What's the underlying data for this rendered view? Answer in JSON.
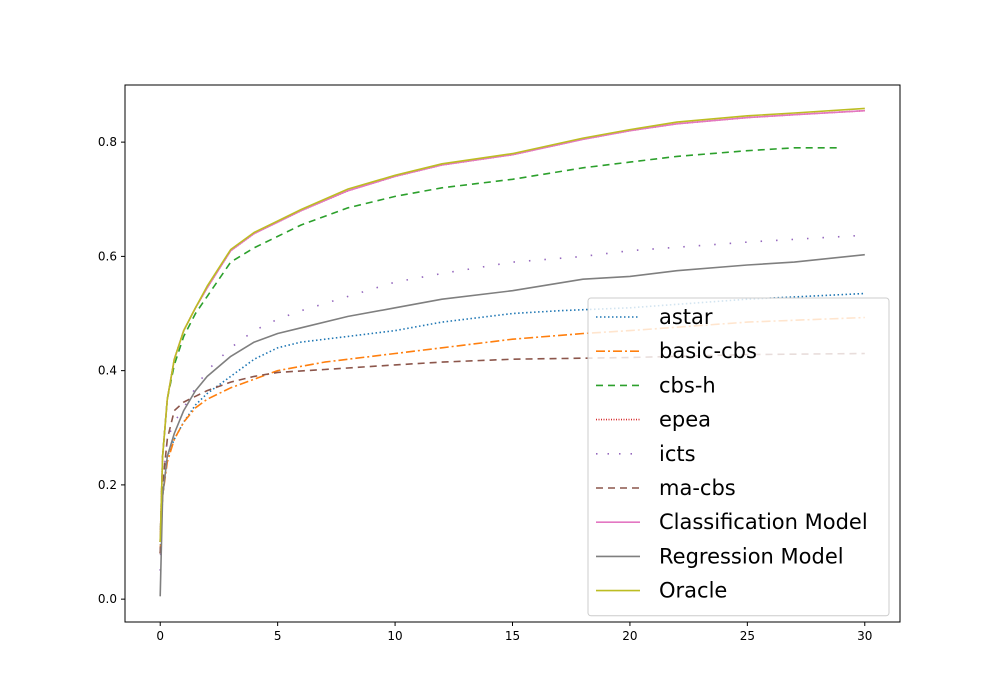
{
  "chart_data": {
    "type": "line",
    "title": "",
    "xlabel": "",
    "ylabel": "",
    "xlim": [
      -1.5,
      31.5
    ],
    "ylim": [
      -0.04,
      0.9
    ],
    "xticks": [
      0,
      5,
      10,
      15,
      20,
      25,
      30
    ],
    "xtick_labels": [
      "0",
      "5",
      "10",
      "15",
      "20",
      "25",
      "30"
    ],
    "yticks": [
      0.0,
      0.2,
      0.4,
      0.6,
      0.8
    ],
    "ytick_labels": [
      "0.0",
      "0.2",
      "0.4",
      "0.6",
      "0.8"
    ],
    "grid": false,
    "legend_position": "lower-right",
    "series": [
      {
        "name": "astar",
        "color": "#1f77b4",
        "style": "dotted",
        "points": [
          [
            0,
            0.08
          ],
          [
            0.1,
            0.18
          ],
          [
            0.3,
            0.25
          ],
          [
            0.6,
            0.28
          ],
          [
            1,
            0.31
          ],
          [
            1.5,
            0.34
          ],
          [
            2,
            0.36
          ],
          [
            3,
            0.39
          ],
          [
            4,
            0.42
          ],
          [
            5,
            0.44
          ],
          [
            6,
            0.45
          ],
          [
            8,
            0.46
          ],
          [
            10,
            0.47
          ],
          [
            12,
            0.485
          ],
          [
            15,
            0.5
          ],
          [
            17,
            0.505
          ],
          [
            20,
            0.51
          ],
          [
            25,
            0.525
          ],
          [
            30,
            0.535
          ]
        ]
      },
      {
        "name": "basic-cbs",
        "color": "#ff7f0e",
        "style": "dashdot",
        "points": [
          [
            0,
            0.08
          ],
          [
            0.1,
            0.18
          ],
          [
            0.3,
            0.24
          ],
          [
            0.6,
            0.28
          ],
          [
            1,
            0.31
          ],
          [
            1.5,
            0.335
          ],
          [
            2,
            0.35
          ],
          [
            3,
            0.37
          ],
          [
            4,
            0.385
          ],
          [
            5,
            0.4
          ],
          [
            7,
            0.415
          ],
          [
            10,
            0.43
          ],
          [
            12,
            0.44
          ],
          [
            15,
            0.455
          ],
          [
            18,
            0.465
          ],
          [
            20,
            0.47
          ],
          [
            25,
            0.485
          ],
          [
            30,
            0.493
          ]
        ]
      },
      {
        "name": "cbs-h",
        "color": "#2ca02c",
        "style": "dashed",
        "points": [
          [
            0,
            0.1
          ],
          [
            0.1,
            0.25
          ],
          [
            0.3,
            0.35
          ],
          [
            0.6,
            0.41
          ],
          [
            1,
            0.46
          ],
          [
            1.5,
            0.5
          ],
          [
            2,
            0.53
          ],
          [
            3,
            0.59
          ],
          [
            4,
            0.615
          ],
          [
            5,
            0.635
          ],
          [
            6,
            0.655
          ],
          [
            8,
            0.685
          ],
          [
            10,
            0.705
          ],
          [
            12,
            0.72
          ],
          [
            15,
            0.735
          ],
          [
            18,
            0.755
          ],
          [
            20,
            0.765
          ],
          [
            22,
            0.775
          ],
          [
            25,
            0.785
          ],
          [
            27,
            0.79
          ],
          [
            29,
            0.79
          ]
        ]
      },
      {
        "name": "epea",
        "color": "#d62728",
        "style": "densedot",
        "points": [
          [
            0,
            0.1
          ],
          [
            0.1,
            0.25
          ],
          [
            0.3,
            0.35
          ],
          [
            0.6,
            0.42
          ],
          [
            1,
            0.47
          ],
          [
            1.5,
            0.51
          ],
          [
            2,
            0.545
          ],
          [
            3,
            0.61
          ],
          [
            4,
            0.64
          ],
          [
            5,
            0.66
          ],
          [
            6,
            0.68
          ],
          [
            8,
            0.715
          ],
          [
            10,
            0.74
          ],
          [
            12,
            0.76
          ],
          [
            15,
            0.778
          ],
          [
            18,
            0.805
          ],
          [
            20,
            0.82
          ],
          [
            22,
            0.832
          ],
          [
            25,
            0.843
          ],
          [
            27,
            0.848
          ],
          [
            30,
            0.855
          ]
        ]
      },
      {
        "name": "icts",
        "color": "#9467bd",
        "style": "sparsedot",
        "points": [
          [
            0,
            0.05
          ],
          [
            0.1,
            0.2
          ],
          [
            0.3,
            0.28
          ],
          [
            0.6,
            0.31
          ],
          [
            1,
            0.335
          ],
          [
            1.5,
            0.37
          ],
          [
            2,
            0.4
          ],
          [
            3,
            0.44
          ],
          [
            4,
            0.47
          ],
          [
            5,
            0.49
          ],
          [
            6,
            0.505
          ],
          [
            8,
            0.53
          ],
          [
            10,
            0.555
          ],
          [
            12,
            0.57
          ],
          [
            15,
            0.59
          ],
          [
            18,
            0.6
          ],
          [
            20,
            0.61
          ],
          [
            25,
            0.625
          ],
          [
            30,
            0.637
          ]
        ]
      },
      {
        "name": "ma-cbs",
        "color": "#8c564b",
        "style": "dashed",
        "points": [
          [
            0,
            0.08
          ],
          [
            0.1,
            0.2
          ],
          [
            0.3,
            0.28
          ],
          [
            0.6,
            0.33
          ],
          [
            1,
            0.345
          ],
          [
            1.5,
            0.355
          ],
          [
            2,
            0.365
          ],
          [
            3,
            0.38
          ],
          [
            4,
            0.39
          ],
          [
            5,
            0.397
          ],
          [
            7,
            0.402
          ],
          [
            10,
            0.41
          ],
          [
            12,
            0.415
          ],
          [
            15,
            0.42
          ],
          [
            20,
            0.423
          ],
          [
            25,
            0.428
          ],
          [
            30,
            0.43
          ]
        ]
      },
      {
        "name": "Classification Model",
        "color": "#e377c2",
        "style": "solid",
        "points": [
          [
            0,
            0.1
          ],
          [
            0.1,
            0.25
          ],
          [
            0.3,
            0.35
          ],
          [
            0.6,
            0.42
          ],
          [
            1,
            0.47
          ],
          [
            1.5,
            0.51
          ],
          [
            2,
            0.545
          ],
          [
            3,
            0.61
          ],
          [
            4,
            0.64
          ],
          [
            5,
            0.66
          ],
          [
            6,
            0.68
          ],
          [
            8,
            0.715
          ],
          [
            10,
            0.74
          ],
          [
            12,
            0.76
          ],
          [
            15,
            0.778
          ],
          [
            18,
            0.805
          ],
          [
            20,
            0.82
          ],
          [
            22,
            0.832
          ],
          [
            25,
            0.843
          ],
          [
            27,
            0.848
          ],
          [
            30,
            0.855
          ]
        ]
      },
      {
        "name": "Regression Model",
        "color": "#7f7f7f",
        "style": "solid",
        "points": [
          [
            0,
            0.005
          ],
          [
            0.1,
            0.18
          ],
          [
            0.3,
            0.25
          ],
          [
            0.6,
            0.29
          ],
          [
            1,
            0.33
          ],
          [
            1.5,
            0.365
          ],
          [
            2,
            0.39
          ],
          [
            3,
            0.425
          ],
          [
            4,
            0.45
          ],
          [
            5,
            0.465
          ],
          [
            6,
            0.475
          ],
          [
            8,
            0.495
          ],
          [
            10,
            0.51
          ],
          [
            12,
            0.525
          ],
          [
            15,
            0.54
          ],
          [
            18,
            0.56
          ],
          [
            20,
            0.565
          ],
          [
            22,
            0.575
          ],
          [
            25,
            0.585
          ],
          [
            27,
            0.59
          ],
          [
            30,
            0.603
          ]
        ]
      },
      {
        "name": "Oracle",
        "color": "#bcbd22",
        "style": "solid",
        "points": [
          [
            0,
            0.1
          ],
          [
            0.1,
            0.25
          ],
          [
            0.3,
            0.35
          ],
          [
            0.6,
            0.42
          ],
          [
            1,
            0.47
          ],
          [
            1.5,
            0.51
          ],
          [
            2,
            0.548
          ],
          [
            3,
            0.612
          ],
          [
            4,
            0.642
          ],
          [
            5,
            0.662
          ],
          [
            6,
            0.682
          ],
          [
            8,
            0.718
          ],
          [
            10,
            0.742
          ],
          [
            12,
            0.762
          ],
          [
            15,
            0.78
          ],
          [
            18,
            0.807
          ],
          [
            20,
            0.822
          ],
          [
            22,
            0.835
          ],
          [
            25,
            0.846
          ],
          [
            27,
            0.851
          ],
          [
            30,
            0.859
          ]
        ]
      }
    ]
  }
}
